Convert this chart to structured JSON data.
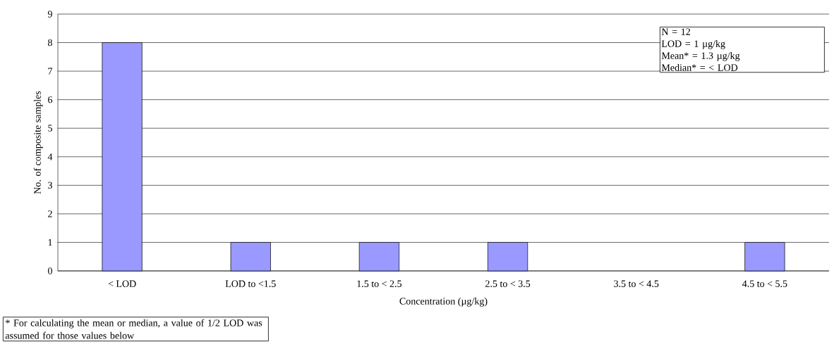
{
  "chart_data": {
    "type": "bar",
    "categories": [
      "< LOD",
      "LOD to <1.5",
      "1.5 to < 2.5",
      "2.5 to < 3.5",
      "3.5 to < 4.5",
      "4.5 to < 5.5"
    ],
    "values": [
      8,
      1,
      1,
      1,
      0,
      1
    ],
    "color": "#9999ff",
    "xlabel": "Concentration (µg/kg)",
    "ylabel": "No. of composite samples",
    "ylim": [
      0,
      9
    ],
    "yticks": [
      0,
      1,
      2,
      3,
      4,
      5,
      6,
      7,
      8,
      9
    ],
    "grid": "y",
    "annotations": [
      "N = 12",
      "LOD  = 1 µg/kg",
      "Mean*  =  1.3 µg/kg",
      "Median*  = < LOD",
      "* For calculating the mean or median, a value of 1/2 LOD was assumed for those values below"
    ]
  }
}
